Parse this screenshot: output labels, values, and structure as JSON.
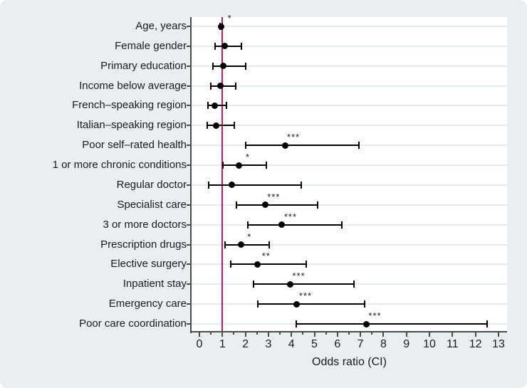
{
  "chart_data": {
    "type": "scatter",
    "subtype": "forest-plot",
    "title": "",
    "xlabel": "Odds ratio (CI)",
    "ylabel": "",
    "xlim": [
      0,
      13.4
    ],
    "x_major_ticks": [
      0,
      1,
      2,
      3,
      4,
      5,
      6,
      7,
      8,
      9,
      10,
      11,
      12,
      13
    ],
    "x_minor_ticks": [
      0.5,
      1.5,
      2.5,
      3.5,
      4.5,
      5.5,
      6.5,
      7.5
    ],
    "grid": "horizontal",
    "legend": "none",
    "reference_line": {
      "x": 1
    },
    "categories": [
      "Age, years",
      "Female gender",
      "Primary education",
      "Income below average",
      "French–speaking region",
      "Italian–speaking region",
      "Poor self–rated health",
      "1 or more chronic conditions",
      "Regular doctor",
      "Specialist care",
      "3 or more doctors",
      "Prescription drugs",
      "Elective surgery",
      "Inpatient stay",
      "Emergency care",
      "Poor care coordination"
    ],
    "series": [
      {
        "name": "Odds ratio (CI)",
        "estimates": [
          0.95,
          1.1,
          1.05,
          0.92,
          0.66,
          0.74,
          3.72,
          1.73,
          1.4,
          2.86,
          3.59,
          1.81,
          2.53,
          3.95,
          4.24,
          7.26
        ],
        "ci_low": [
          0.91,
          0.67,
          0.59,
          0.51,
          0.37,
          0.34,
          2.01,
          1.02,
          0.41,
          1.6,
          2.09,
          1.11,
          1.35,
          2.35,
          2.54,
          4.21
        ],
        "ci_high": [
          0.99,
          1.83,
          2.02,
          1.59,
          1.18,
          1.51,
          6.92,
          2.92,
          4.44,
          5.14,
          6.2,
          3.02,
          4.65,
          6.72,
          7.19,
          12.51
        ],
        "significance": [
          "*",
          "",
          "",
          "",
          "",
          "",
          "***",
          "*",
          "",
          "***",
          "***",
          "*",
          "**",
          "***",
          "***",
          "***"
        ]
      }
    ]
  },
  "colors": {
    "background": "#e9eff1",
    "plot_background": "#ffffff",
    "gridline": "#e2ebee",
    "axis": "#4a4a4a",
    "reference_line": "#c41e4f",
    "marker": "#000000",
    "text": "#1a1a1a"
  }
}
